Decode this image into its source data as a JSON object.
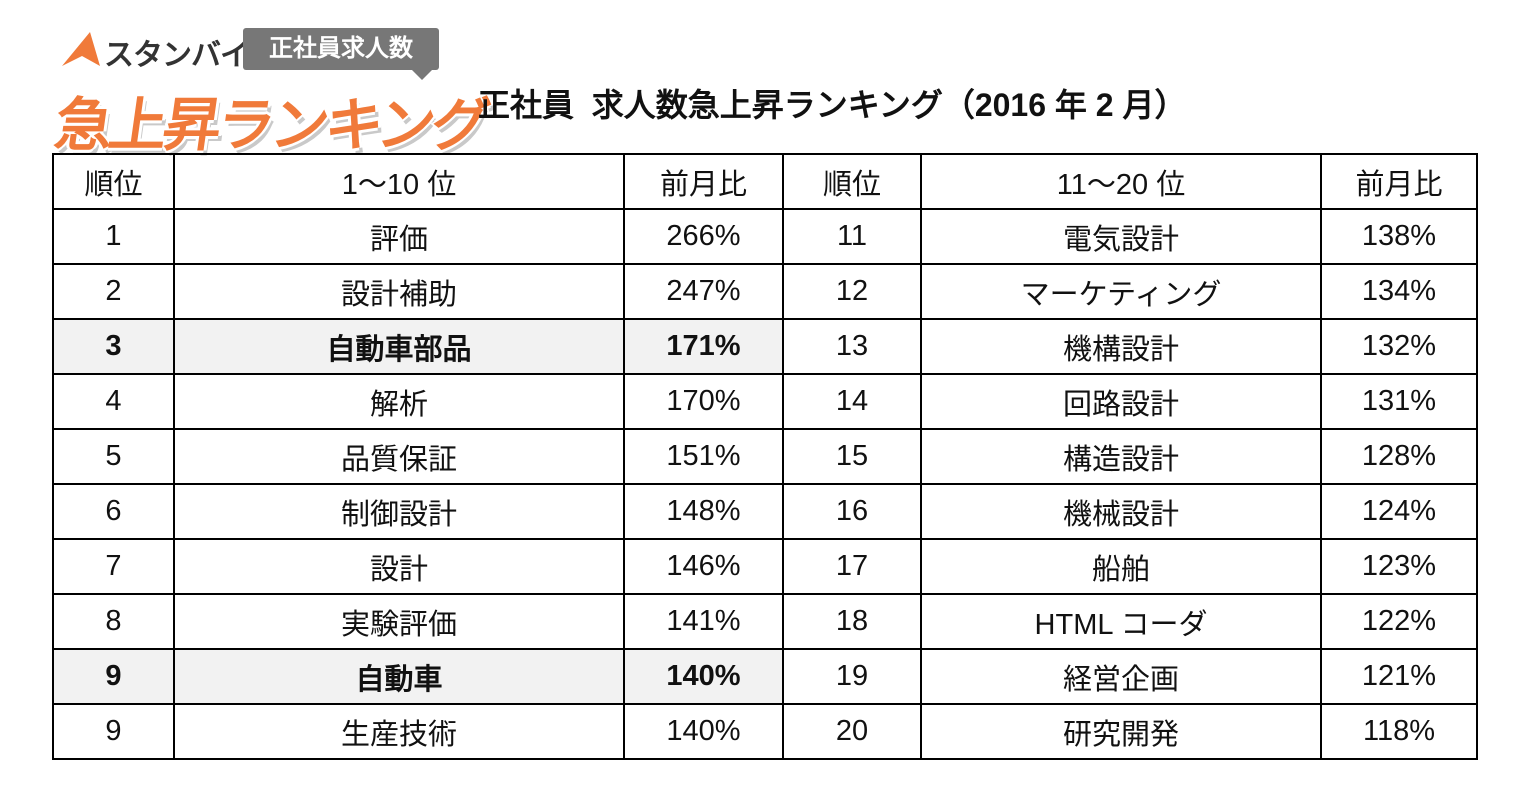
{
  "logo": {
    "brand": "スタンバイ",
    "tag": "正社員求人数",
    "banner": "急上昇ランキング"
  },
  "header": {
    "title": "正社員  求人数急上昇ランキング（2016 年 2 月）"
  },
  "table": {
    "columns": [
      "順位",
      "1〜10 位",
      "前月比",
      "順位",
      "11〜20 位",
      "前月比"
    ],
    "rows": [
      [
        "1",
        "評価",
        "266%",
        "11",
        "電気設計",
        "138%"
      ],
      [
        "2",
        "設計補助",
        "247%",
        "12",
        "マーケティング",
        "134%"
      ],
      [
        "3",
        "自動車部品",
        "171%",
        "13",
        "機構設計",
        "132%"
      ],
      [
        "4",
        "解析",
        "170%",
        "14",
        "回路設計",
        "131%"
      ],
      [
        "5",
        "品質保証",
        "151%",
        "15",
        "構造設計",
        "128%"
      ],
      [
        "6",
        "制御設計",
        "148%",
        "16",
        "機械設計",
        "124%"
      ],
      [
        "7",
        "設計",
        "146%",
        "17",
        "船舶",
        "123%"
      ],
      [
        "8",
        "実験評価",
        "141%",
        "18",
        "HTML コーダ",
        "122%"
      ],
      [
        "9",
        "自動車",
        "140%",
        "19",
        "経営企画",
        "121%"
      ],
      [
        "9",
        "生産技術",
        "140%",
        "20",
        "研究開発",
        "118%"
      ]
    ],
    "highlighted_rows": [
      2,
      8
    ]
  }
}
